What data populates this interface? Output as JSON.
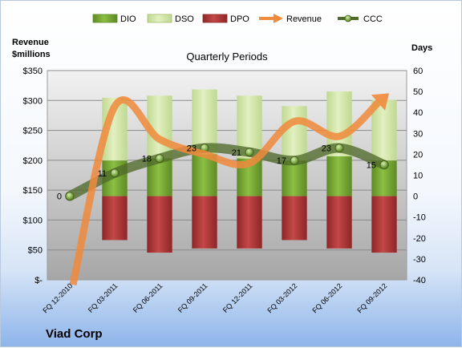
{
  "chart_data": {
    "type": "bar",
    "title": "Quarterly Periods",
    "company": "Viad Corp",
    "left_axis_label": [
      "Revenue",
      "$millions"
    ],
    "right_axis_label": "Days",
    "categories": [
      "FQ 12-2010",
      "FQ 03-2011",
      "FQ 06-2011",
      "FQ 09-2011",
      "FQ 12-2011",
      "FQ 03-2012",
      "FQ 06-2012",
      "FQ 09-2012"
    ],
    "left_axis": {
      "min": 0,
      "max": 350,
      "step": 50,
      "tick_labels": [
        "$-",
        "$50",
        "$100",
        "$150",
        "$200",
        "$250",
        "$300",
        "$350"
      ]
    },
    "right_axis": {
      "min": -40,
      "max": 60,
      "step": 10,
      "tick_labels": [
        "-40",
        "-30",
        "-20",
        "-10",
        "0",
        "10",
        "20",
        "30",
        "40",
        "50",
        "60"
      ]
    },
    "series": [
      {
        "name": "DIO",
        "type": "stacked-bar",
        "color": "#6f9a2e",
        "values": [
          null,
          17,
          18,
          20,
          18,
          17,
          19,
          17
        ]
      },
      {
        "name": "DSO",
        "type": "stacked-bar",
        "color": "#c8e09a",
        "values": [
          null,
          30,
          30,
          31,
          30,
          26,
          31,
          29
        ]
      },
      {
        "name": "DPO",
        "type": "stacked-bar",
        "color": "#a33030",
        "values": [
          null,
          -21,
          -27,
          -25,
          -25,
          -21,
          -25,
          -27
        ]
      },
      {
        "name": "Revenue",
        "type": "line",
        "axis": "left",
        "color": "#f08a3c",
        "values": [
          0,
          290,
          235,
          210,
          195,
          265,
          240,
          305
        ]
      },
      {
        "name": "CCC",
        "type": "line",
        "axis": "right",
        "color": "#4f6a2a",
        "values": [
          0,
          11,
          18,
          23,
          21,
          17,
          23,
          15
        ]
      }
    ],
    "data_labels": [
      "0",
      "11",
      "18",
      "23",
      "21",
      "17",
      "23",
      "15"
    ],
    "legend_position": "top",
    "grid": true
  }
}
